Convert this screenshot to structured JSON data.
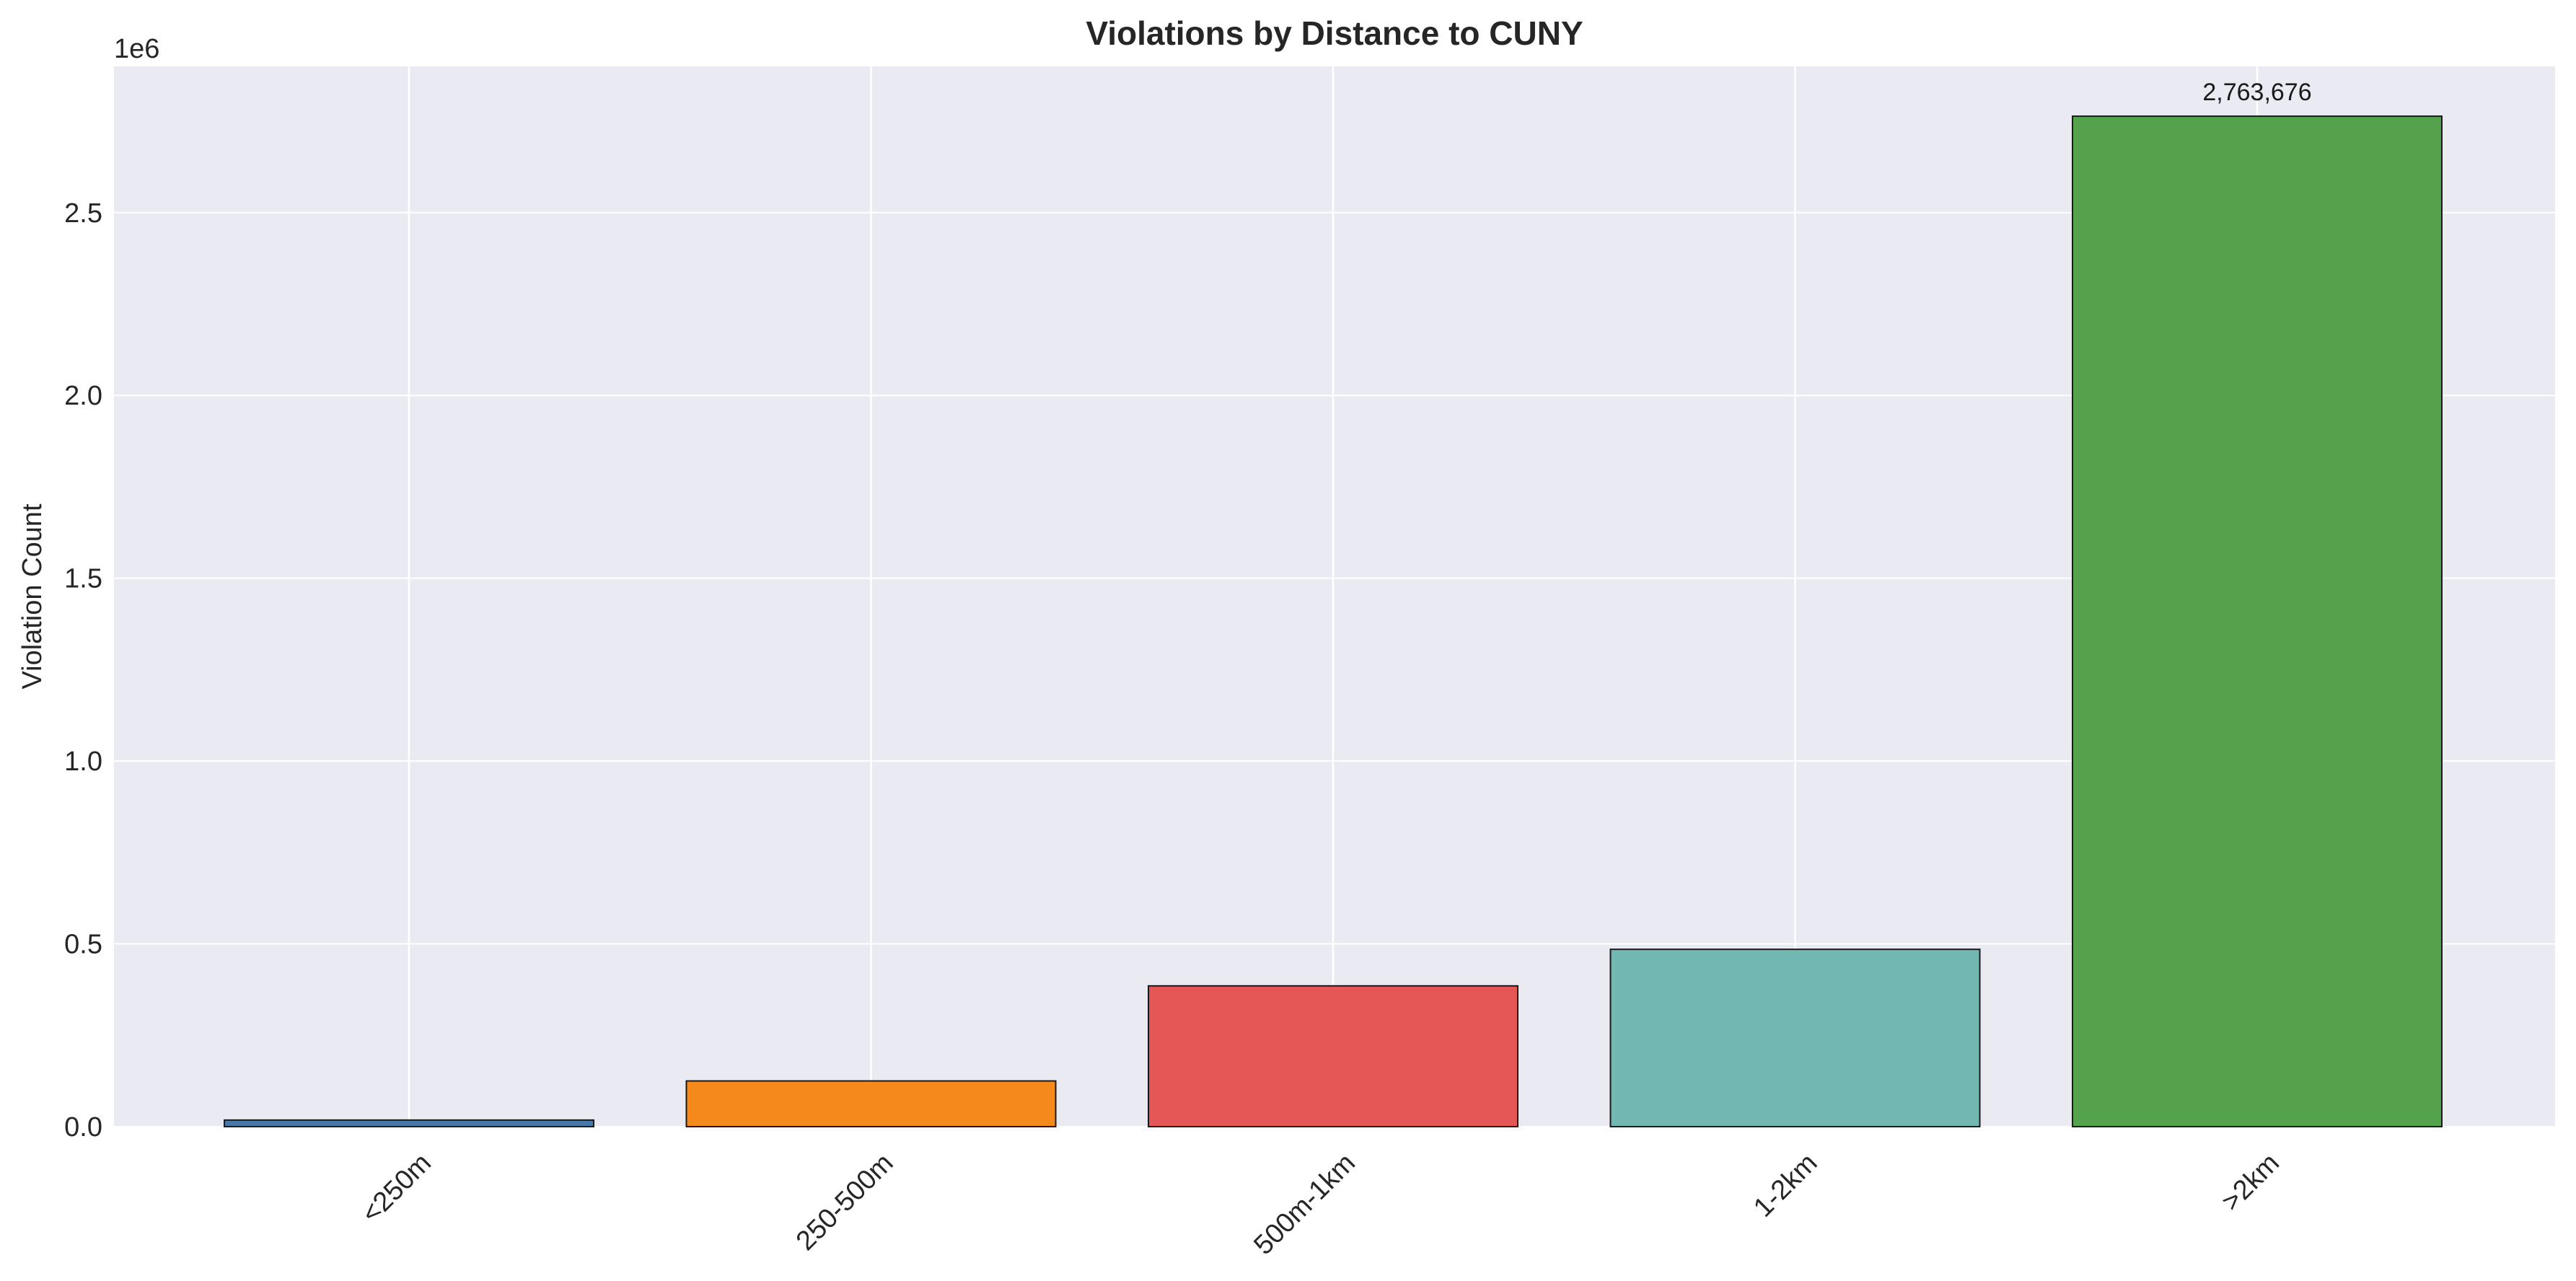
{
  "chart_data": {
    "type": "bar",
    "title": "Violations by Distance to CUNY",
    "xlabel": "",
    "ylabel": "Violation Count",
    "y_offset_label": "1e6",
    "categories": [
      "<250m",
      "250-500m",
      "500m-1km",
      "1-2km",
      ">2km"
    ],
    "values": [
      18000,
      125000,
      385000,
      485000,
      2763676
    ],
    "colors": [
      "#4878a8",
      "#f5891c",
      "#e45756",
      "#72b7b2",
      "#54a24b"
    ],
    "data_labels": [
      {
        "category": ">2km",
        "text": "2,763,676"
      }
    ],
    "ylim": [
      0,
      2900000
    ],
    "yticks": [
      0,
      500000,
      1000000,
      1500000,
      2000000,
      2500000
    ],
    "ytick_labels": [
      "0.0",
      "0.5",
      "1.0",
      "1.5",
      "2.0",
      "2.5"
    ],
    "xtick_rotation": 45,
    "grid": true,
    "style": {
      "plot_background": "#eaeaf2",
      "grid_color": "#ffffff",
      "bar_edge_color": "#1a1a1a"
    }
  }
}
